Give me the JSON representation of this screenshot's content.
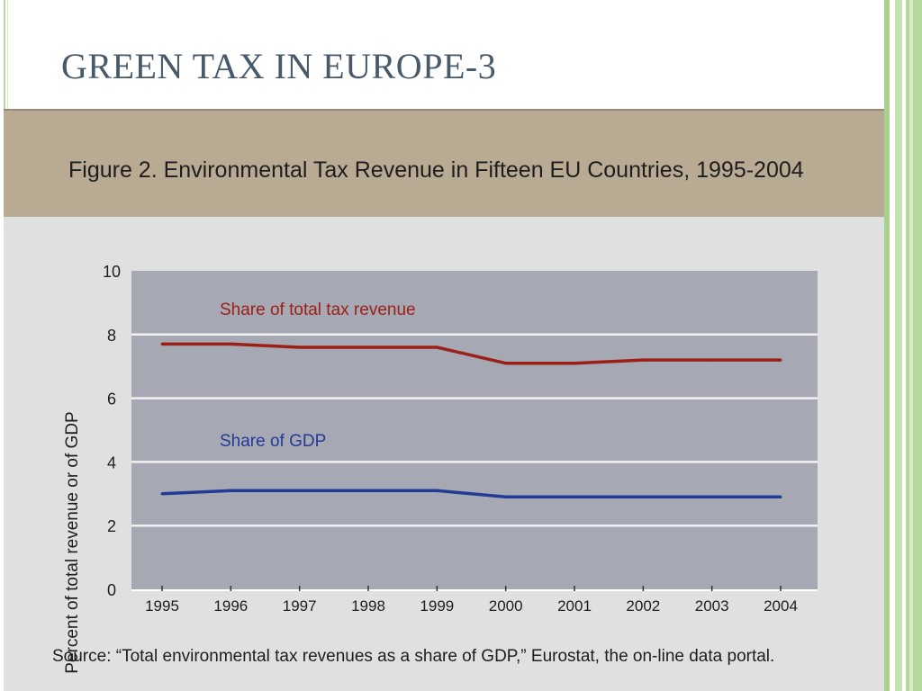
{
  "slide": {
    "title": "GREEN TAX IN EUROPE-3"
  },
  "figure": {
    "caption": "Figure 2. Environmental Tax Revenue in Fifteen EU Countries, 1995-2004",
    "source": "Source: “Total environmental tax revenues as a share of GDP,” Eurostat, the on-line data portal."
  },
  "colors": {
    "header_bg": "#b9aa93",
    "panel_bg": "#dfe0e0",
    "plot_bg": "#a6a8b3",
    "grid": "#f2f2f2",
    "tax_series": "#9c1f18",
    "gdp_series": "#223c96",
    "title_text": "#475a6c"
  },
  "chart_data": {
    "type": "line",
    "title": "Figure 2. Environmental Tax Revenue in Fifteen EU Countries, 1995-2004",
    "xlabel": "",
    "ylabel": "Percent of total revenue or of GDP",
    "x": [
      "1995",
      "1996",
      "1997",
      "1998",
      "1999",
      "2000",
      "2001",
      "2002",
      "2003",
      "2004"
    ],
    "ylim": [
      0,
      10
    ],
    "yticks": [
      0,
      2,
      4,
      6,
      8,
      10
    ],
    "grid": true,
    "series": [
      {
        "name": "Share of total tax revenue",
        "color": "#9c1f18",
        "values": [
          7.7,
          7.7,
          7.6,
          7.6,
          7.6,
          7.1,
          7.1,
          7.2,
          7.2,
          7.2
        ]
      },
      {
        "name": "Share of GDP",
        "color": "#223c96",
        "values": [
          3.0,
          3.1,
          3.1,
          3.1,
          3.1,
          2.9,
          2.9,
          2.9,
          2.9,
          2.9
        ]
      }
    ]
  }
}
